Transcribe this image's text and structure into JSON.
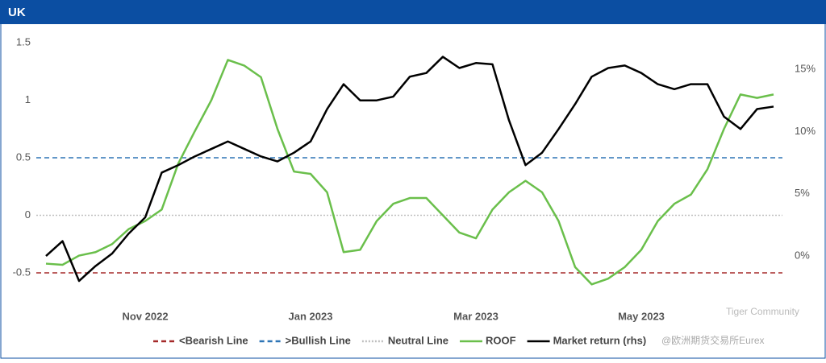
{
  "header": {
    "title": "UK"
  },
  "watermark": {
    "brand": "Tiger Community",
    "source": "@欧洲期货交易所Eurex"
  },
  "chart_data": {
    "type": "line",
    "categories": [
      null,
      null,
      null,
      null,
      null,
      null,
      "Nov 2022",
      null,
      null,
      null,
      null,
      null,
      null,
      null,
      null,
      null,
      "Jan 2023",
      null,
      null,
      null,
      null,
      null,
      null,
      null,
      null,
      null,
      "Mar 2023",
      null,
      null,
      null,
      null,
      null,
      null,
      null,
      null,
      null,
      "May 2023",
      null,
      null,
      null,
      null,
      null,
      null,
      null,
      null
    ],
    "reference_lines": [
      {
        "name": "<Bearish Line",
        "value": -0.5,
        "color": "#a52a2a",
        "dash": "6,4"
      },
      {
        "name": ">Bullish Line",
        "value": 0.5,
        "color": "#2e75b6",
        "dash": "6,4"
      },
      {
        "name": "Neutral Line",
        "value": 0,
        "color": "#bfbfbf",
        "dash": "2,2"
      }
    ],
    "series": [
      {
        "name": "ROOF",
        "color": "#6abf4b",
        "values": [
          -0.42,
          -0.43,
          -0.35,
          -0.32,
          -0.25,
          -0.12,
          -0.05,
          0.05,
          0.45,
          0.73,
          1.0,
          1.35,
          1.3,
          1.2,
          0.75,
          0.38,
          0.36,
          0.2,
          -0.32,
          -0.3,
          -0.05,
          0.1,
          0.15,
          0.15,
          0.0,
          -0.15,
          -0.2,
          0.05,
          0.2,
          0.3,
          0.2,
          -0.05,
          -0.45,
          -0.6,
          -0.55,
          -0.45,
          -0.3,
          -0.05,
          0.1,
          0.18,
          0.4,
          0.75,
          1.05,
          1.02,
          1.05
        ]
      },
      {
        "name": "Market return (rhs)",
        "color": "#000000",
        "axis": "y2",
        "values": [
          0,
          1.2,
          -2.0,
          -0.8,
          0.2,
          1.8,
          3.1,
          6.7,
          7.3,
          8.0,
          8.6,
          9.2,
          8.6,
          8.0,
          7.6,
          8.3,
          9.2,
          11.8,
          13.8,
          12.5,
          12.5,
          12.8,
          14.4,
          14.7,
          16.0,
          15.1,
          15.5,
          15.4,
          10.9,
          7.3,
          8.3,
          10.2,
          12.2,
          14.4,
          15.1,
          15.3,
          14.7,
          13.8,
          13.4,
          13.8,
          13.8,
          11.2,
          10.2,
          11.8,
          12.0
        ]
      }
    ],
    "ylim": [
      -0.7,
      1.6
    ],
    "yticks": [
      -0.5,
      0.0,
      0.5,
      1.0,
      1.5
    ],
    "y2lim": [
      -3.2,
      18.06
    ],
    "y2ticks": [
      {
        "value": 0,
        "label": "0%"
      },
      {
        "value": 5,
        "label": "5%"
      },
      {
        "value": 10,
        "label": "10%"
      },
      {
        "value": 15,
        "label": "15%"
      }
    ]
  }
}
